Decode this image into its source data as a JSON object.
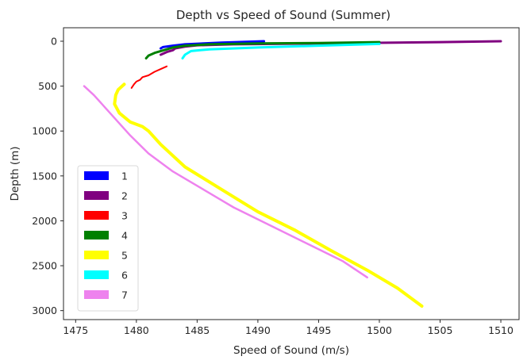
{
  "chart_data": {
    "type": "line",
    "title": "Depth vs Speed of Sound (Summer)",
    "xlabel": "Speed of Sound (m/s)",
    "ylabel": "Depth (m)",
    "xlim": [
      1474,
      1511.5
    ],
    "ylim": [
      3100,
      -150
    ],
    "y_inverted": true,
    "x_ticks": [
      1475,
      1480,
      1485,
      1490,
      1495,
      1500,
      1505,
      1510
    ],
    "y_ticks": [
      0,
      500,
      1000,
      1500,
      2000,
      2500,
      3000
    ],
    "grid": false,
    "legend_position": "lower-left",
    "series": [
      {
        "name": "1",
        "color": "#0000ff",
        "width": 3,
        "x": [
          1490.5,
          1487,
          1484,
          1483,
          1482.2,
          1482
        ],
        "y": [
          0,
          15,
          35,
          50,
          65,
          80
        ]
      },
      {
        "name": "2",
        "color": "#800080",
        "width": 3,
        "x": [
          1510,
          1505,
          1495,
          1488,
          1485,
          1484,
          1483.2,
          1483,
          1482.5,
          1482
        ],
        "y": [
          0,
          10,
          25,
          35,
          45,
          60,
          80,
          100,
          120,
          150
        ]
      },
      {
        "name": "3",
        "color": "#ff0000",
        "width": 2,
        "x": [
          1482.5,
          1482,
          1481.5,
          1481,
          1480.5,
          1480.3,
          1480,
          1479.8,
          1479.6
        ],
        "y": [
          280,
          310,
          340,
          380,
          400,
          430,
          450,
          480,
          520
        ]
      },
      {
        "name": "4",
        "color": "#008000",
        "width": 3,
        "x": [
          1500,
          1495,
          1490,
          1486,
          1484,
          1483,
          1482.5,
          1482,
          1481.5,
          1481,
          1480.8
        ],
        "y": [
          10,
          20,
          25,
          35,
          50,
          70,
          90,
          110,
          130,
          160,
          190
        ]
      },
      {
        "name": "5",
        "color": "#ffff00",
        "width": 4,
        "x": [
          1479,
          1478.5,
          1478.3,
          1478.2,
          1478.6,
          1479.5,
          1480.5,
          1481,
          1482,
          1484,
          1487,
          1490,
          1493,
          1496,
          1499,
          1501.5,
          1503.5
        ],
        "y": [
          480,
          540,
          600,
          700,
          800,
          900,
          950,
          1000,
          1150,
          1400,
          1650,
          1900,
          2100,
          2330,
          2550,
          2750,
          2950
        ]
      },
      {
        "name": "6",
        "color": "#00ffff",
        "width": 3,
        "x": [
          1500,
          1495,
          1490,
          1486,
          1484.5,
          1484,
          1483.8
        ],
        "y": [
          30,
          50,
          70,
          90,
          110,
          150,
          190
        ]
      },
      {
        "name": "7",
        "color": "#ee82ee",
        "width": 2.5,
        "x": [
          1475.7,
          1476.5,
          1477.5,
          1478.5,
          1479.5,
          1481,
          1483,
          1485.5,
          1488,
          1491,
          1494,
          1497,
          1499
        ],
        "y": [
          500,
          600,
          750,
          900,
          1050,
          1250,
          1450,
          1650,
          1850,
          2050,
          2250,
          2450,
          2630
        ]
      }
    ]
  }
}
